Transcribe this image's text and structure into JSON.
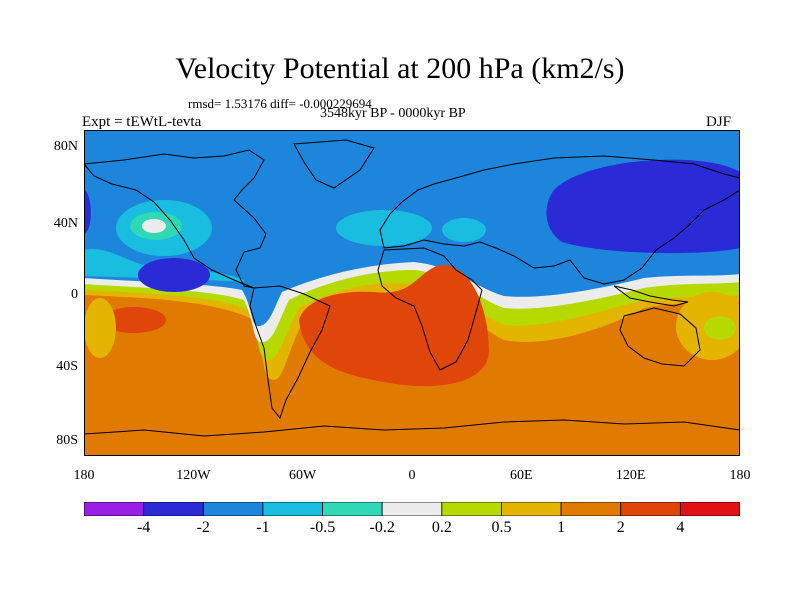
{
  "figure": {
    "title": "Velocity Potential at 200 hPa (km2/s)",
    "stats": "rmsd= 1.53176 diff= -0.000229694",
    "period": "3548kyr BP - 0000kyr BP",
    "experiment": "Expt = tEWtL-tevta",
    "season": "DJF"
  },
  "axes": {
    "lat_ticks": [
      "80N",
      "40N",
      "0",
      "40S",
      "80S"
    ],
    "lon_ticks": [
      "180",
      "120W",
      "60W",
      "0",
      "60E",
      "120E",
      "180"
    ]
  },
  "colorbar": {
    "colors": [
      "#9a1fe6",
      "#2a2ad6",
      "#1d86dc",
      "#18bde0",
      "#30d8b6",
      "#ececec",
      "#b6d900",
      "#e3b400",
      "#e17a00",
      "#e0450a",
      "#e01214"
    ],
    "labels": [
      "-4",
      "-2",
      "-1",
      "-0.5",
      "-0.2",
      "0.2",
      "0.5",
      "1",
      "2",
      "4"
    ]
  },
  "map_colors": {
    "ocean_background": "#e17a00",
    "neg_weak": "#1d86dc",
    "neg_strong": "#2a2ad6",
    "neg_light": "#18bde0",
    "neg_lighter": "#30d8b6",
    "neutral": "#ececec",
    "pos_light": "#b6d900",
    "pos_mid": "#e3b400",
    "pos_strong": "#e0450a",
    "coast": "#000000"
  }
}
